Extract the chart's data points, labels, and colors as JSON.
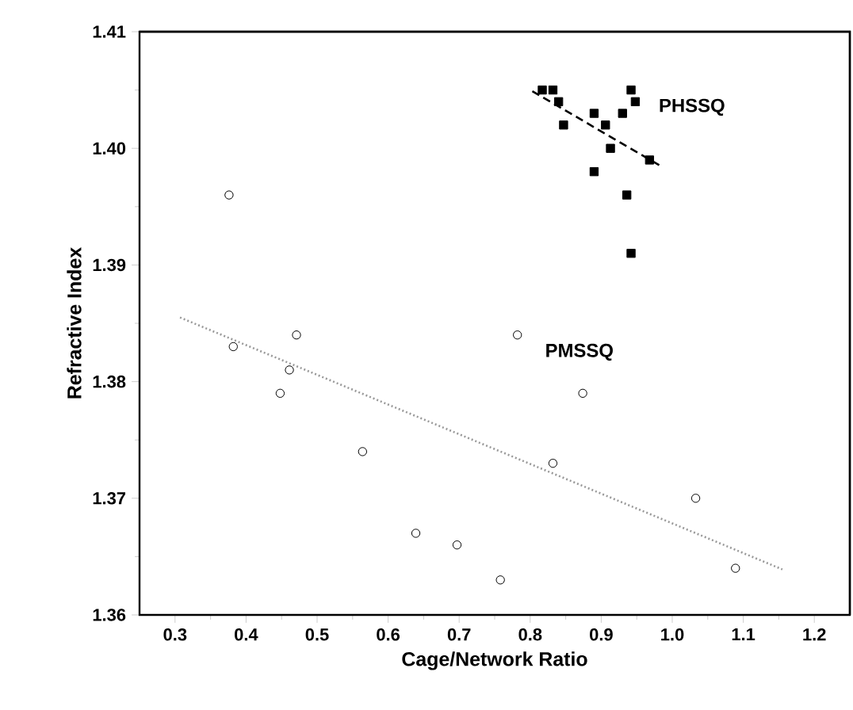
{
  "chart_data": {
    "type": "scatter",
    "xlabel": "Cage/Network Ratio",
    "ylabel": "Refractive Index",
    "xlim": [
      0.25,
      1.25
    ],
    "ylim": [
      1.36,
      1.41
    ],
    "xticks": [
      0.3,
      0.4,
      0.5,
      0.6,
      0.7,
      0.8,
      0.9,
      {
        "value": 1.0,
        "label": "1.0"
      },
      1.1,
      1.2
    ],
    "yticks": [
      1.36,
      1.37,
      1.38,
      1.39,
      {
        "value": 1.4,
        "label": "1.40"
      },
      1.41
    ],
    "grid": false,
    "legend": false,
    "series": [
      {
        "name": "PMSSQ",
        "color": "#000000",
        "marker": "circle",
        "x": [
          0.376,
          0.382,
          0.471,
          0.461,
          0.448,
          0.564,
          0.639,
          0.697,
          0.758,
          0.782,
          0.874,
          0.832,
          1.033,
          1.089
        ],
        "values": [
          1.396,
          1.383,
          1.384,
          1.381,
          1.379,
          1.374,
          1.367,
          1.366,
          1.363,
          1.384,
          1.379,
          1.373,
          1.37,
          1.364
        ]
      },
      {
        "name": "PHSSQ",
        "color": "#000000",
        "marker": "square",
        "x": [
          0.817,
          0.832,
          0.84,
          0.942,
          0.948,
          0.847,
          0.89,
          0.906,
          0.93,
          0.913,
          0.968,
          0.89,
          0.936,
          0.942
        ],
        "values": [
          1.405,
          1.405,
          1.404,
          1.405,
          1.404,
          1.402,
          1.403,
          1.402,
          1.403,
          1.4,
          1.399,
          1.398,
          1.396,
          1.391
        ]
      },
      {
        "type": "line",
        "color": "#000000",
        "line_style": "dashed",
        "marker": "none",
        "x": [
          0.803,
          0.986
        ],
        "values": [
          1.4049,
          1.3984
        ]
      },
      {
        "type": "line",
        "color": "#999999",
        "line_style": "dotted",
        "marker": "none",
        "x": [
          0.307,
          1.155
        ],
        "values": [
          1.3855,
          1.3639
        ]
      }
    ]
  }
}
